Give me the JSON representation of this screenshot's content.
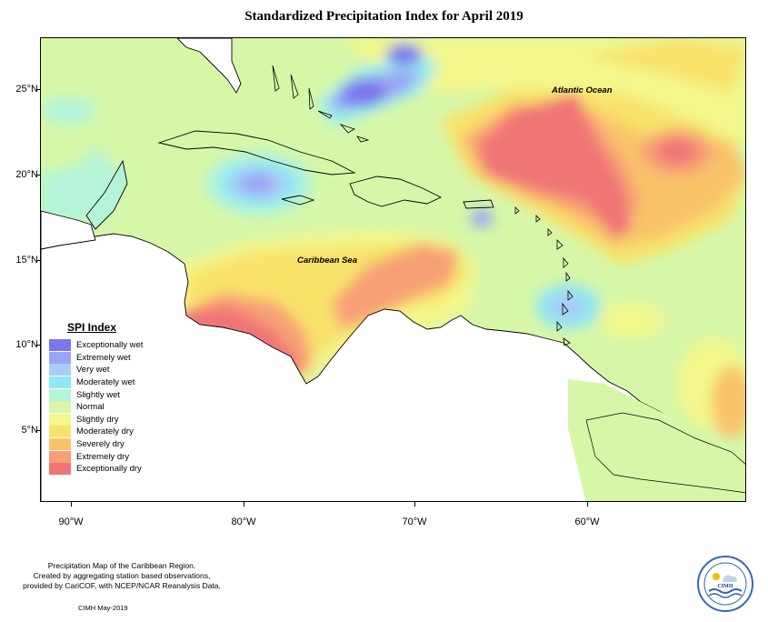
{
  "title": "Standardized Precipitation Index for April 2019",
  "map": {
    "latitude_labels": [
      "25°N",
      "20°N",
      "15°N",
      "10°N",
      "5°N"
    ],
    "longitude_labels": [
      "90°W",
      "80°W",
      "70°W",
      "60°W"
    ],
    "place_labels": {
      "atlantic": "Atlantic Ocean",
      "caribbean": "Caribbean Sea"
    }
  },
  "legend": {
    "title": "SPI Index",
    "items": [
      {
        "label": "Exceptionally wet",
        "color": "#7b76ee"
      },
      {
        "label": "Extremely wet",
        "color": "#9aa5f5"
      },
      {
        "label": "Very wet",
        "color": "#a9ccf6"
      },
      {
        "label": "Moderately wet",
        "color": "#8fe7f3"
      },
      {
        "label": "Slightly wet",
        "color": "#b3f4d9"
      },
      {
        "label": "Normal",
        "color": "#d6f7a8"
      },
      {
        "label": "Slightly dry",
        "color": "#f3f78c"
      },
      {
        "label": "Moderately dry",
        "color": "#f8e26a"
      },
      {
        "label": "Severely dry",
        "color": "#f9c36b"
      },
      {
        "label": "Extremely dry",
        "color": "#f7a075"
      },
      {
        "label": "Exceptionally dry",
        "color": "#f07474"
      }
    ]
  },
  "footer": {
    "line1": "Precipitation Map of the Caribbean Region.",
    "line2": "Created by aggregating station based observations,",
    "line3": "provided by CariCOF, with NCEP/NCAR Reanalysis Data.",
    "credit": "CIMH May-2019",
    "logo_text": "CIMH"
  }
}
